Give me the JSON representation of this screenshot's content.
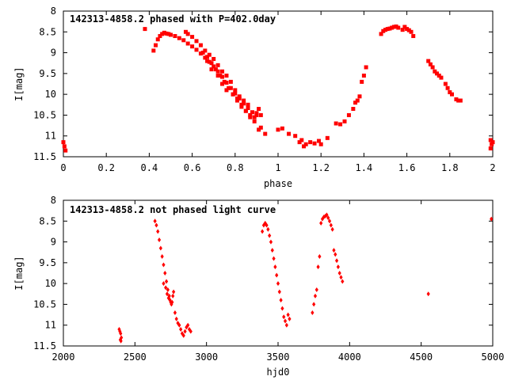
{
  "chart_data": [
    {
      "type": "scatter",
      "title": "142313-4858.2 phased with P=402.0day",
      "xlabel": "phase",
      "ylabel": "I[mag]",
      "xlim": [
        0,
        2
      ],
      "ylim": [
        11.5,
        8
      ],
      "y_inverted": true,
      "xticks": [
        "0",
        "0.2",
        "0.4",
        "0.6",
        "0.8",
        "1",
        "1.2",
        "1.4",
        "1.6",
        "1.8",
        "2"
      ],
      "yticks": [
        "8",
        "8.5",
        "9",
        "9.5",
        "10",
        "10.5",
        "11",
        "11.5"
      ],
      "grid": false,
      "color": "#ff0000",
      "series": [
        {
          "x": [
            0.0,
            0.005,
            0.01,
            0.38,
            0.42,
            0.43,
            0.44,
            0.45,
            0.46,
            0.47,
            0.48,
            0.49,
            0.5,
            0.52,
            0.54,
            0.56,
            0.58,
            0.6,
            0.62,
            0.64,
            0.66,
            0.68,
            0.7,
            0.72,
            0.74,
            0.76,
            0.78,
            0.8,
            0.82,
            0.84,
            0.86,
            0.88,
            0.9,
            0.57,
            0.58,
            0.6,
            0.62,
            0.64,
            0.66,
            0.68,
            0.7,
            0.72,
            0.74,
            0.76,
            0.78,
            0.8,
            0.82,
            0.84,
            0.86,
            0.65,
            0.67,
            0.69,
            0.71,
            0.73,
            0.75,
            0.77,
            0.79,
            0.81,
            0.83,
            0.85,
            0.87,
            0.89,
            0.67,
            0.69,
            0.72,
            0.74,
            0.76,
            0.79,
            0.81,
            0.83,
            0.85,
            0.87,
            0.89,
            0.9,
            0.91,
            0.92,
            0.91,
            0.92,
            0.94,
            1.0,
            1.02,
            1.05,
            1.08,
            1.1,
            1.11,
            1.12,
            1.13,
            1.15,
            1.17,
            1.19,
            1.2,
            1.23,
            1.27,
            1.29,
            1.31,
            1.33,
            1.35,
            1.36,
            1.37,
            1.38,
            1.39,
            1.4,
            1.41,
            1.48,
            1.49,
            1.5,
            1.51,
            1.52,
            1.53,
            1.54,
            1.55,
            1.56,
            1.58,
            1.59,
            1.6,
            1.61,
            1.62,
            1.63,
            1.7,
            1.71,
            1.72,
            1.73,
            1.74,
            1.75,
            1.76,
            1.78,
            1.79,
            1.8,
            1.81,
            1.83,
            1.84,
            1.85,
            1.99,
            2.0,
            1.995,
            1.99
          ],
          "y": [
            11.15,
            11.25,
            11.35,
            8.43,
            8.95,
            8.82,
            8.68,
            8.6,
            8.55,
            8.52,
            8.54,
            8.55,
            8.57,
            8.6,
            8.65,
            8.7,
            8.78,
            8.85,
            8.93,
            9.02,
            9.12,
            9.22,
            9.33,
            9.45,
            9.58,
            9.72,
            9.85,
            9.98,
            10.1,
            10.22,
            10.33,
            10.43,
            10.5,
            8.5,
            8.55,
            8.62,
            8.72,
            8.82,
            8.95,
            9.05,
            9.15,
            9.3,
            9.45,
            9.55,
            9.7,
            9.9,
            10.05,
            10.15,
            10.25,
            9.0,
            9.1,
            9.25,
            9.4,
            9.55,
            9.7,
            9.85,
            10.0,
            10.15,
            10.3,
            10.4,
            10.5,
            10.55,
            9.2,
            9.4,
            9.55,
            9.75,
            9.9,
            10.0,
            10.1,
            10.25,
            10.4,
            10.55,
            10.65,
            10.45,
            10.35,
            10.5,
            10.85,
            10.8,
            10.95,
            10.85,
            10.82,
            10.95,
            11.0,
            11.15,
            11.1,
            11.25,
            11.2,
            11.15,
            11.18,
            11.12,
            11.2,
            11.05,
            10.7,
            10.72,
            10.65,
            10.5,
            10.35,
            10.2,
            10.15,
            10.05,
            9.7,
            9.55,
            9.35,
            8.55,
            8.48,
            8.45,
            8.43,
            8.42,
            8.4,
            8.38,
            8.37,
            8.4,
            8.45,
            8.38,
            8.43,
            8.46,
            8.5,
            8.6,
            9.2,
            9.28,
            9.35,
            9.45,
            9.5,
            9.55,
            9.6,
            9.75,
            9.85,
            9.95,
            10.0,
            10.12,
            10.15,
            10.15,
            11.1,
            11.15,
            11.2,
            11.3
          ]
        }
      ]
    },
    {
      "type": "scatter",
      "title": "142313-4858.2 not phased light curve",
      "xlabel": "hjd0",
      "ylabel": "I[mag]",
      "xlim": [
        2000,
        5000
      ],
      "ylim": [
        11.5,
        8
      ],
      "y_inverted": true,
      "xticks": [
        "2000",
        "2500",
        "3000",
        "3500",
        "4000",
        "4500",
        "5000"
      ],
      "yticks": [
        "8",
        "8.5",
        "9",
        "9.5",
        "10",
        "10.5",
        "11",
        "11.5"
      ],
      "grid": false,
      "color": "#ff0000",
      "series": [
        {
          "x": [
            2390,
            2395,
            2400,
            2405,
            2398,
            2402,
            2640,
            2650,
            2660,
            2670,
            2680,
            2690,
            2700,
            2710,
            2720,
            2730,
            2740,
            2750,
            2760,
            2765,
            2770,
            2780,
            2790,
            2800,
            2810,
            2820,
            2830,
            2840,
            2850,
            2860,
            2870,
            2880,
            2890,
            2700,
            2715,
            2725,
            2735,
            2745,
            2755,
            3390,
            3400,
            3410,
            3420,
            3430,
            3440,
            3450,
            3460,
            3470,
            3480,
            3490,
            3500,
            3510,
            3520,
            3530,
            3540,
            3550,
            3560,
            3570,
            3580,
            3740,
            3750,
            3760,
            3770,
            3780,
            3790,
            3800,
            3810,
            3820,
            3830,
            3840,
            3850,
            3860,
            3870,
            3880,
            3890,
            3900,
            3910,
            3920,
            3930,
            3940,
            3950,
            4550,
            4990
          ],
          "y": [
            11.1,
            11.15,
            11.2,
            11.3,
            11.35,
            11.38,
            8.5,
            8.6,
            8.75,
            8.95,
            9.15,
            9.35,
            9.55,
            9.75,
            9.95,
            10.15,
            10.3,
            10.45,
            10.45,
            10.3,
            10.2,
            10.7,
            10.85,
            10.95,
            11.0,
            11.1,
            11.2,
            11.25,
            11.15,
            11.05,
            11.0,
            11.1,
            11.15,
            10.0,
            10.1,
            10.25,
            10.35,
            10.4,
            10.5,
            8.75,
            8.6,
            8.55,
            8.6,
            8.7,
            8.85,
            9.0,
            9.2,
            9.4,
            9.6,
            9.8,
            10.0,
            10.2,
            10.4,
            10.6,
            10.8,
            10.9,
            11.0,
            10.75,
            10.85,
            10.7,
            10.5,
            10.3,
            10.15,
            9.6,
            9.35,
            8.55,
            8.45,
            8.4,
            8.38,
            8.35,
            8.42,
            8.5,
            8.6,
            8.7,
            9.2,
            9.3,
            9.45,
            9.6,
            9.75,
            9.85,
            9.95,
            10.25,
            8.45
          ]
        }
      ]
    }
  ]
}
